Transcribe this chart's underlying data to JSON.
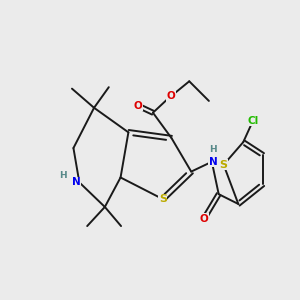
{
  "background_color": "#ebebeb",
  "bond_color": "#1a1a1a",
  "bond_width": 1.4,
  "atom_colors": {
    "C": "#1a1a1a",
    "N": "#0000ee",
    "O": "#dd0000",
    "S": "#bbaa00",
    "Cl": "#22bb00",
    "H": "#558888"
  },
  "font_size_atom": 7.5,
  "font_size_small": 6.0
}
